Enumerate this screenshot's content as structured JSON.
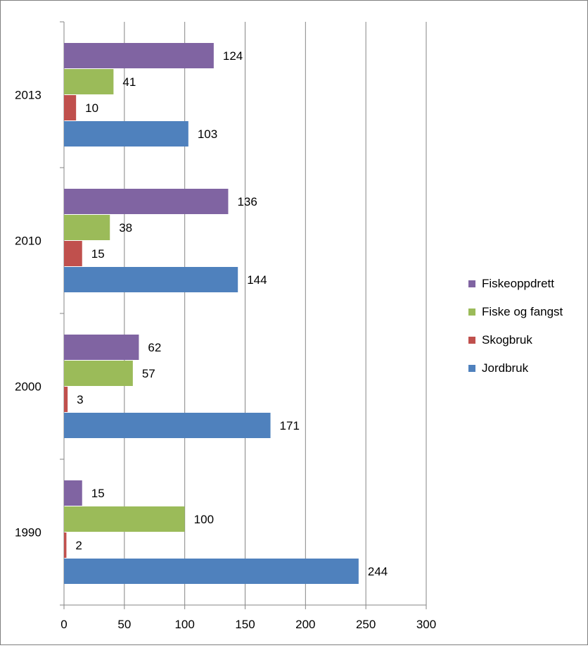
{
  "chart_data": {
    "type": "bar",
    "orientation": "horizontal",
    "categories": [
      "1990",
      "2000",
      "2010",
      "2013"
    ],
    "series": [
      {
        "name": "Jordbruk",
        "color": "#4f81bd",
        "values": [
          244,
          171,
          144,
          103
        ]
      },
      {
        "name": "Skogbruk",
        "color": "#c0504d",
        "values": [
          2,
          3,
          15,
          10
        ]
      },
      {
        "name": "Fiske og fangst",
        "color": "#9bbb59",
        "values": [
          100,
          57,
          38,
          41
        ]
      },
      {
        "name": "Fiskeoppdrett",
        "color": "#8064a2",
        "values": [
          15,
          62,
          136,
          124
        ]
      }
    ],
    "x_ticks": [
      "0",
      "50",
      "100",
      "150",
      "200",
      "250",
      "300"
    ],
    "xlim": [
      0,
      300
    ],
    "grid": true,
    "data_labels": true,
    "legend_position": "right",
    "legend_order": [
      "Fiskeoppdrett",
      "Fiske og fangst",
      "Skogbruk",
      "Jordbruk"
    ],
    "title": "",
    "xlabel": "",
    "ylabel": ""
  }
}
